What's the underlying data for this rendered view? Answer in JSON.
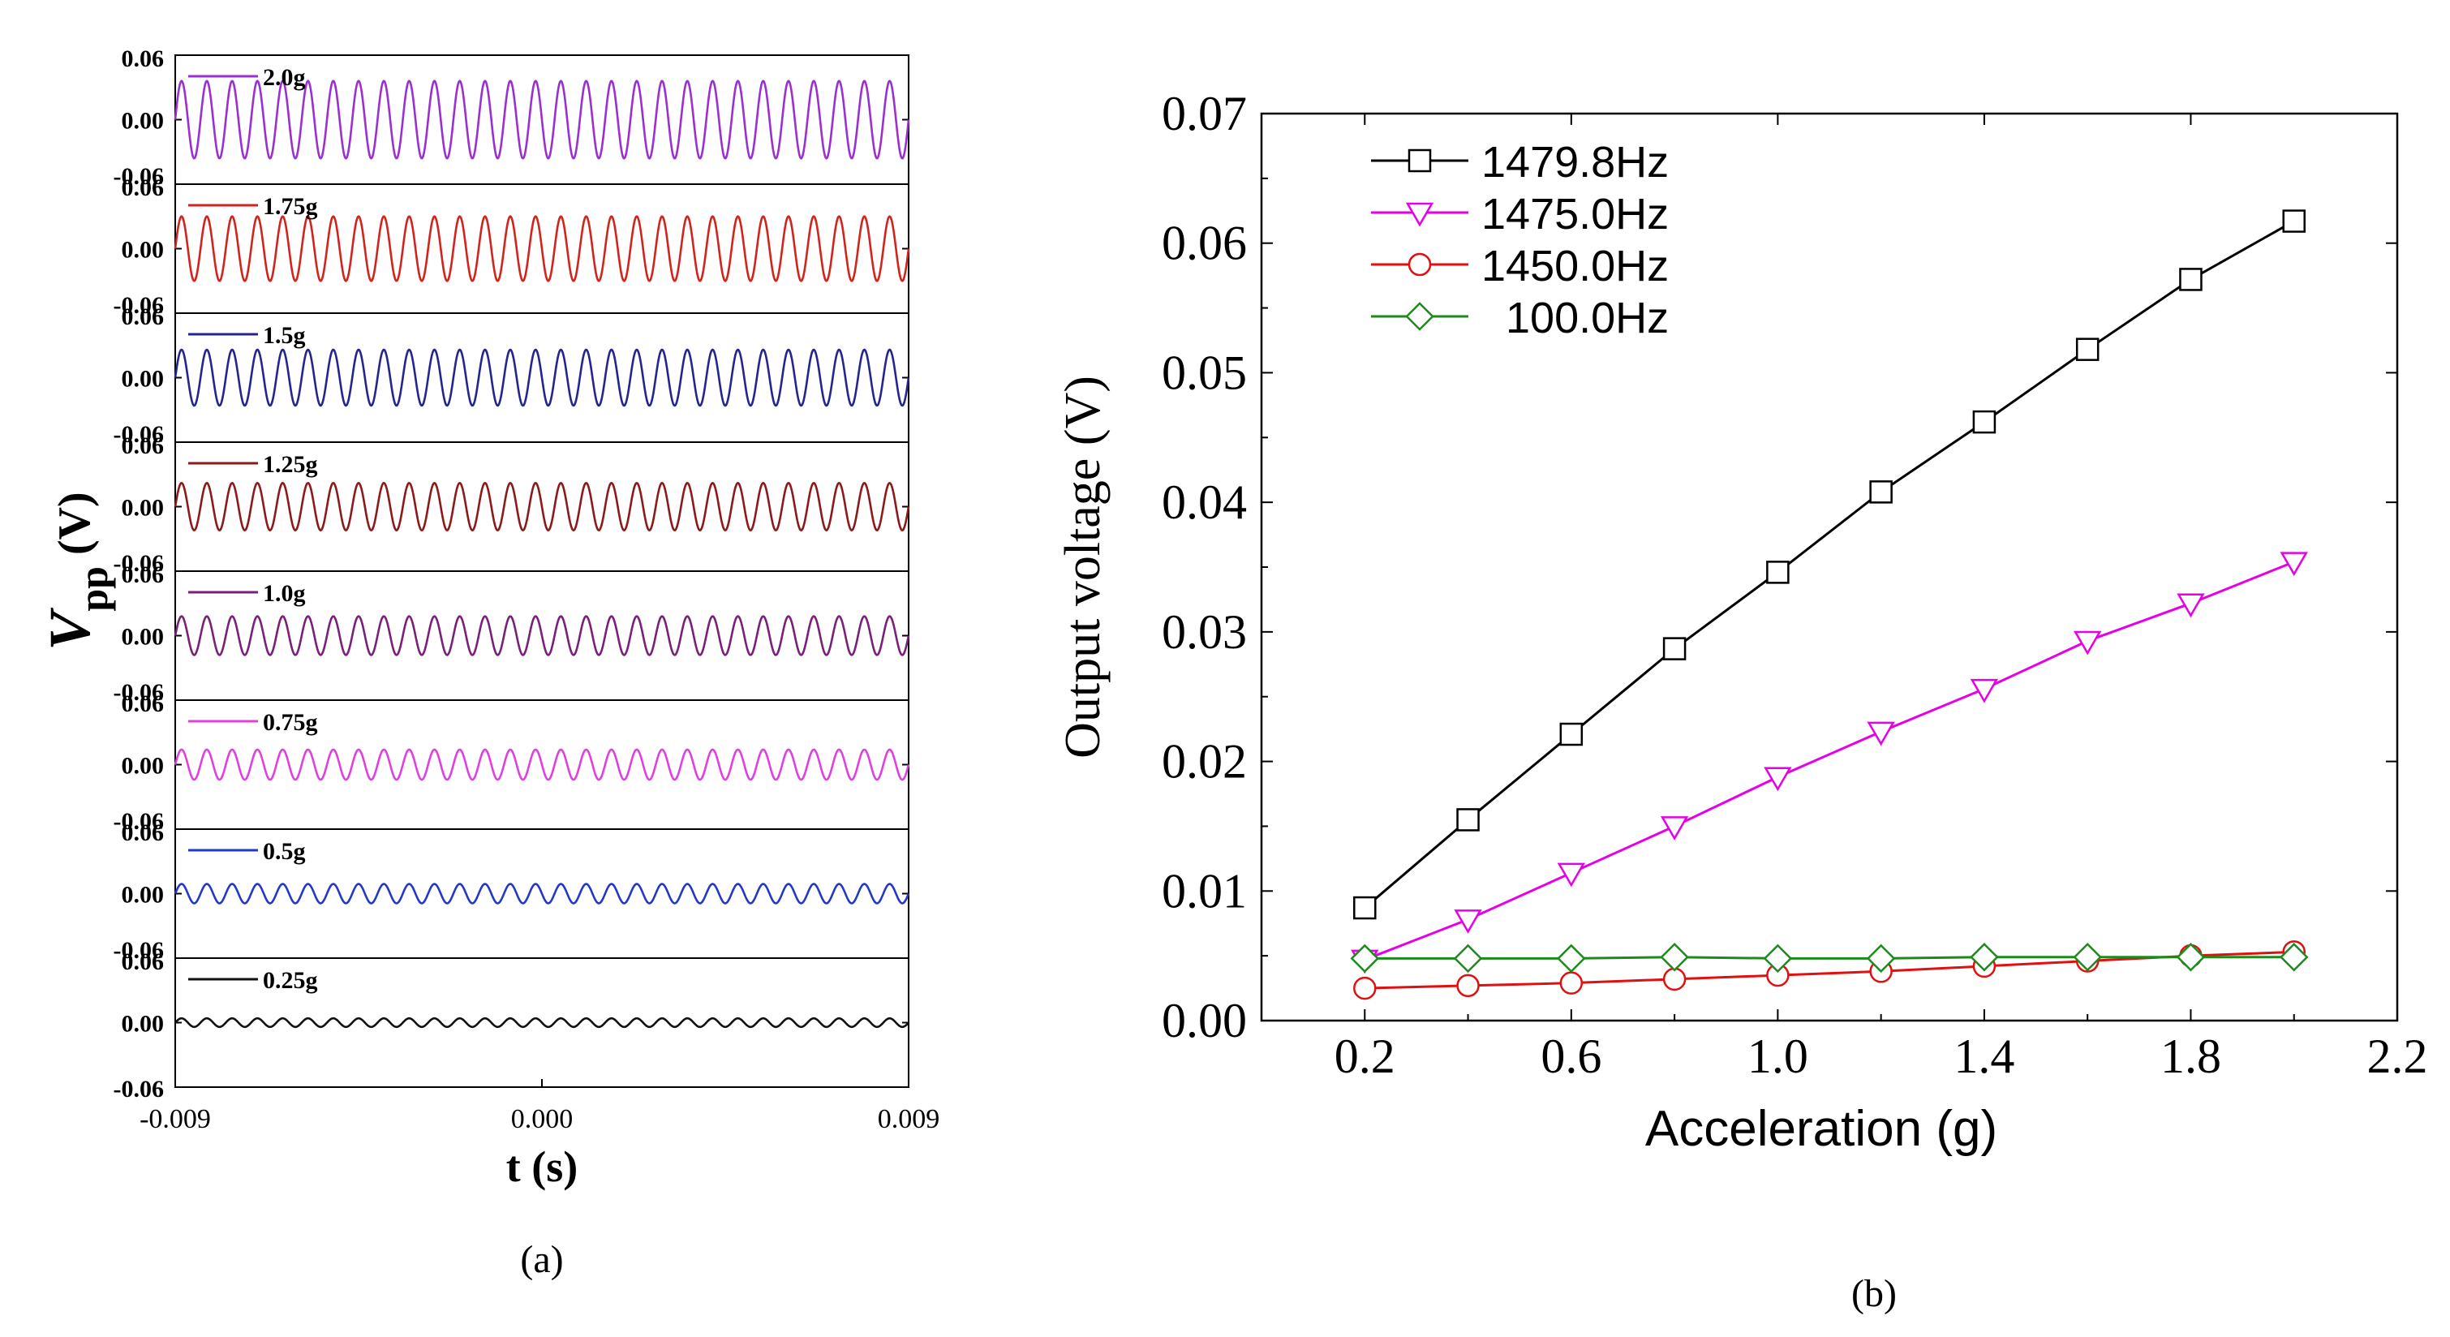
{
  "chart_data": [
    {
      "panel": "(a)",
      "type": "line",
      "ylabel_main": "V",
      "ylabel_sub": "pp",
      "ylabel_unit": "(V)",
      "xlabel": "t (s)",
      "xlim": [
        -0.009,
        0.009
      ],
      "x_ticks": [
        "-0.009",
        "0.000",
        "0.009"
      ],
      "ylim_each": [
        -0.06,
        0.06
      ],
      "y_tick_labels": [
        "0.06",
        "0.00",
        "-0.06"
      ],
      "signal_cycles": 29,
      "series": [
        {
          "name": "2.0g",
          "color": "#9b30d0",
          "amplitude": 0.036
        },
        {
          "name": "1.75g",
          "color": "#d0241c",
          "amplitude": 0.03
        },
        {
          "name": "1.5g",
          "color": "#25258f",
          "amplitude": 0.026
        },
        {
          "name": "1.25g",
          "color": "#8b1a1a",
          "amplitude": 0.022
        },
        {
          "name": "1.0g",
          "color": "#7a1f7a",
          "amplitude": 0.018
        },
        {
          "name": "0.75g",
          "color": "#e040e0",
          "amplitude": 0.014
        },
        {
          "name": "0.5g",
          "color": "#2438c8",
          "amplitude": 0.009
        },
        {
          "name": "0.25g",
          "color": "#111111",
          "amplitude": 0.004
        }
      ]
    },
    {
      "panel": "(b)",
      "type": "line",
      "xlabel": "Acceleration (g)",
      "ylabel": "Output voltage (V)",
      "xlim": [
        0.0,
        2.2
      ],
      "ylim": [
        0.0,
        0.07
      ],
      "x_ticks": [
        0.2,
        0.6,
        1.0,
        1.4,
        1.8,
        2.2
      ],
      "x_tick_labels": [
        "0.2",
        "0.6",
        "1.0",
        "1.4",
        "1.8",
        "2.2"
      ],
      "y_ticks": [
        0.0,
        0.01,
        0.02,
        0.03,
        0.04,
        0.05,
        0.06,
        0.07
      ],
      "y_tick_labels": [
        "0.00",
        "0.01",
        "0.02",
        "0.03",
        "0.04",
        "0.05",
        "0.06",
        "0.07"
      ],
      "legend_position": "top-left",
      "x": [
        0.2,
        0.4,
        0.6,
        0.8,
        1.0,
        1.2,
        1.4,
        1.6,
        1.8,
        2.0
      ],
      "series": [
        {
          "name": "1479.8Hz",
          "marker": "square",
          "color": "#000000",
          "values": [
            0.0087,
            0.0155,
            0.0221,
            0.0287,
            0.0346,
            0.0408,
            0.0462,
            0.0518,
            0.0572,
            0.0617
          ]
        },
        {
          "name": "1475.0Hz",
          "marker": "triangle-down",
          "color": "#e600e6",
          "values": [
            0.0047,
            0.0078,
            0.0114,
            0.015,
            0.0188,
            0.0223,
            0.0256,
            0.0293,
            0.0322,
            0.0354
          ]
        },
        {
          "name": "1450.0Hz",
          "marker": "circle",
          "color": "#e01010",
          "values": [
            0.0025,
            0.0027,
            0.0029,
            0.0032,
            0.0035,
            0.0038,
            0.0042,
            0.0046,
            0.005,
            0.0053
          ]
        },
        {
          "name": "100.0Hz",
          "marker": "diamond",
          "color": "#1e8a1e",
          "values": [
            0.0048,
            0.0048,
            0.0048,
            0.0049,
            0.0048,
            0.0048,
            0.0049,
            0.0049,
            0.0049,
            0.0049
          ]
        }
      ]
    }
  ]
}
